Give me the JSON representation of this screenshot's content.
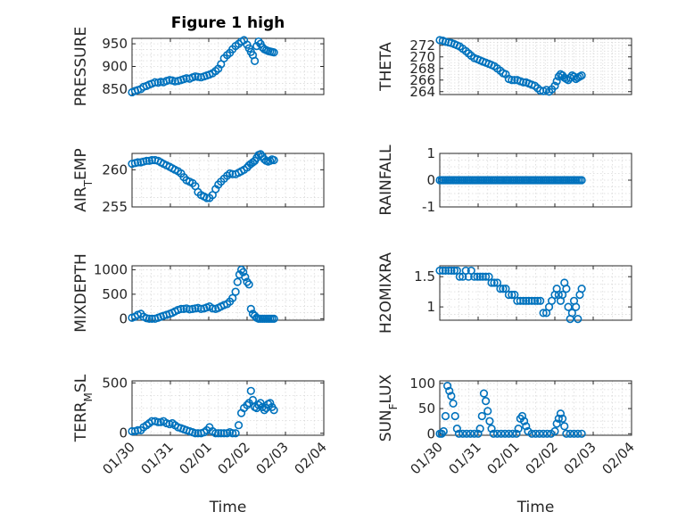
{
  "colors": {
    "marker": "#0072BD",
    "axis": "#262626",
    "grid": "#d9d9d9"
  },
  "x_tick_labels": [
    "01/30",
    "01/31",
    "02/01",
    "02/02",
    "02/03",
    "02/04"
  ],
  "chart_data": [
    {
      "type": "scatter",
      "title": "Figure 1 high",
      "ylabel": "PRESSURE",
      "ylim": [
        838,
        962
      ],
      "yticks": [
        850,
        900,
        950
      ],
      "xlim": [
        0,
        5
      ],
      "grid": true,
      "x": [
        0.0,
        0.08,
        0.15,
        0.23,
        0.3,
        0.38,
        0.45,
        0.52,
        0.6,
        0.68,
        0.75,
        0.82,
        0.9,
        0.98,
        1.05,
        1.12,
        1.2,
        1.28,
        1.35,
        1.42,
        1.5,
        1.58,
        1.65,
        1.72,
        1.8,
        1.88,
        1.95,
        2.02,
        2.1,
        2.18,
        2.25,
        2.32,
        2.4,
        2.48,
        2.55,
        2.62,
        2.7,
        2.78,
        2.85,
        2.92,
        3.0,
        3.05,
        3.1,
        3.15,
        3.2,
        3.25,
        3.3,
        3.35,
        3.4,
        3.45,
        3.5,
        3.55,
        3.6,
        3.65,
        3.7
      ],
      "y": [
        843,
        846,
        848,
        850,
        855,
        857,
        860,
        862,
        865,
        864,
        866,
        865,
        868,
        870,
        869,
        867,
        868,
        870,
        872,
        874,
        873,
        876,
        878,
        877,
        876,
        878,
        880,
        882,
        885,
        890,
        895,
        905,
        918,
        925,
        930,
        938,
        945,
        950,
        955,
        958,
        948,
        940,
        932,
        925,
        912,
        945,
        955,
        950,
        942,
        938,
        936,
        934,
        933,
        932,
        931
      ]
    },
    {
      "type": "scatter",
      "ylabel": "THETA",
      "ylim": [
        263.5,
        273.2
      ],
      "yticks": [
        264,
        266,
        268,
        270,
        272
      ],
      "xlim": [
        0,
        5
      ],
      "grid": true,
      "x": [
        0.0,
        0.08,
        0.15,
        0.23,
        0.3,
        0.38,
        0.45,
        0.52,
        0.6,
        0.68,
        0.75,
        0.82,
        0.9,
        0.98,
        1.05,
        1.12,
        1.2,
        1.28,
        1.35,
        1.42,
        1.5,
        1.58,
        1.65,
        1.72,
        1.8,
        1.88,
        1.95,
        2.02,
        2.1,
        2.18,
        2.25,
        2.32,
        2.4,
        2.48,
        2.55,
        2.62,
        2.7,
        2.78,
        2.85,
        2.92,
        3.0,
        3.05,
        3.1,
        3.15,
        3.2,
        3.25,
        3.3,
        3.35,
        3.4,
        3.45,
        3.5,
        3.55,
        3.6,
        3.65,
        3.7
      ],
      "y": [
        272.9,
        272.8,
        272.6,
        272.5,
        272.4,
        272.2,
        272.0,
        271.8,
        271.4,
        271.0,
        270.6,
        270.2,
        269.8,
        269.6,
        269.4,
        269.2,
        269.0,
        268.8,
        268.6,
        268.4,
        268.0,
        267.6,
        267.2,
        267.0,
        266.2,
        266.0,
        266.0,
        266.0,
        265.8,
        265.6,
        265.6,
        265.4,
        265.2,
        265.0,
        264.6,
        264.2,
        264.1,
        264.3,
        264.0,
        264.4,
        265.0,
        265.8,
        266.6,
        267.0,
        266.8,
        266.4,
        266.2,
        266.0,
        266.4,
        266.8,
        266.6,
        266.2,
        266.4,
        266.6,
        266.8
      ]
    },
    {
      "type": "scatter",
      "ylabel": "AIR_TEMP",
      "ylim": [
        255,
        262.2
      ],
      "yticks": [
        255,
        260
      ],
      "xlim": [
        0,
        5
      ],
      "grid": true,
      "x": [
        0.0,
        0.08,
        0.15,
        0.23,
        0.3,
        0.38,
        0.45,
        0.52,
        0.6,
        0.68,
        0.75,
        0.82,
        0.9,
        0.98,
        1.05,
        1.12,
        1.2,
        1.28,
        1.35,
        1.42,
        1.5,
        1.58,
        1.65,
        1.72,
        1.8,
        1.88,
        1.95,
        2.02,
        2.1,
        2.18,
        2.25,
        2.32,
        2.4,
        2.48,
        2.55,
        2.62,
        2.7,
        2.78,
        2.85,
        2.92,
        3.0,
        3.05,
        3.1,
        3.15,
        3.2,
        3.25,
        3.3,
        3.35,
        3.4,
        3.45,
        3.5,
        3.55,
        3.6,
        3.65,
        3.7
      ],
      "y": [
        260.8,
        260.9,
        261.0,
        261.0,
        261.1,
        261.2,
        261.2,
        261.3,
        261.3,
        261.2,
        261.0,
        260.8,
        260.6,
        260.4,
        260.2,
        260.0,
        259.8,
        259.5,
        259.0,
        258.6,
        258.4,
        258.2,
        257.8,
        257.0,
        256.6,
        256.4,
        256.2,
        256.2,
        256.6,
        257.4,
        258.0,
        258.4,
        258.8,
        259.2,
        259.5,
        259.4,
        259.4,
        259.6,
        259.8,
        260.0,
        260.3,
        260.6,
        260.8,
        261.0,
        261.2,
        261.6,
        262.0,
        262.1,
        261.8,
        261.4,
        261.2,
        261.1,
        261.2,
        261.4,
        261.3
      ]
    },
    {
      "type": "scatter",
      "ylabel": "RAINFALL",
      "ylim": [
        -1,
        1
      ],
      "yticks": [
        -1,
        0,
        1
      ],
      "xlim": [
        0,
        5
      ],
      "grid": true,
      "x_range": [
        0,
        3.7
      ],
      "constant_value": 0
    },
    {
      "type": "scatter",
      "ylabel": "MIXDEPTH",
      "ylim": [
        -30,
        1080
      ],
      "yticks": [
        0,
        500,
        1000
      ],
      "xlim": [
        0,
        5
      ],
      "grid": true,
      "x": [
        0.0,
        0.08,
        0.15,
        0.23,
        0.3,
        0.38,
        0.45,
        0.52,
        0.6,
        0.68,
        0.75,
        0.82,
        0.9,
        0.98,
        1.05,
        1.12,
        1.2,
        1.28,
        1.35,
        1.42,
        1.5,
        1.58,
        1.65,
        1.72,
        1.8,
        1.88,
        1.95,
        2.02,
        2.1,
        2.18,
        2.25,
        2.32,
        2.4,
        2.48,
        2.55,
        2.62,
        2.7,
        2.75,
        2.8,
        2.85,
        2.9,
        2.95,
        3.0,
        3.05,
        3.1,
        3.15,
        3.2,
        3.25,
        3.3,
        3.35,
        3.4,
        3.45,
        3.5,
        3.55,
        3.6,
        3.65,
        3.7
      ],
      "y": [
        20,
        40,
        80,
        100,
        40,
        10,
        0,
        0,
        0,
        20,
        40,
        60,
        80,
        100,
        120,
        150,
        180,
        200,
        200,
        210,
        190,
        200,
        210,
        220,
        200,
        210,
        230,
        250,
        210,
        200,
        220,
        250,
        280,
        300,
        350,
        420,
        550,
        750,
        900,
        1000,
        950,
        850,
        750,
        700,
        200,
        100,
        60,
        20,
        0,
        0,
        0,
        0,
        0,
        0,
        0,
        0,
        0
      ]
    },
    {
      "type": "scatter",
      "ylabel": "H2OMIXRA",
      "ylim": [
        0.78,
        1.68
      ],
      "yticks": [
        1,
        1.5
      ],
      "xlim": [
        0,
        5
      ],
      "grid": true,
      "x": [
        0.0,
        0.08,
        0.15,
        0.23,
        0.3,
        0.38,
        0.45,
        0.52,
        0.6,
        0.68,
        0.75,
        0.82,
        0.9,
        0.98,
        1.05,
        1.12,
        1.2,
        1.28,
        1.35,
        1.42,
        1.5,
        1.58,
        1.65,
        1.72,
        1.8,
        1.88,
        1.95,
        2.02,
        2.1,
        2.18,
        2.25,
        2.32,
        2.4,
        2.48,
        2.55,
        2.62,
        2.7,
        2.78,
        2.85,
        2.92,
        3.0,
        3.05,
        3.1,
        3.15,
        3.2,
        3.25,
        3.3,
        3.35,
        3.4,
        3.45,
        3.5,
        3.55,
        3.6,
        3.65,
        3.7
      ],
      "y": [
        1.6,
        1.6,
        1.6,
        1.6,
        1.6,
        1.6,
        1.6,
        1.5,
        1.5,
        1.6,
        1.5,
        1.6,
        1.5,
        1.5,
        1.5,
        1.5,
        1.5,
        1.5,
        1.4,
        1.4,
        1.4,
        1.3,
        1.3,
        1.3,
        1.2,
        1.2,
        1.2,
        1.1,
        1.1,
        1.1,
        1.1,
        1.1,
        1.1,
        1.1,
        1.1,
        1.1,
        0.9,
        0.9,
        1.0,
        1.1,
        1.2,
        1.3,
        1.2,
        1.1,
        1.2,
        1.4,
        1.3,
        1.0,
        0.8,
        0.9,
        1.1,
        1.0,
        0.8,
        1.2,
        1.3
      ]
    },
    {
      "type": "scatter",
      "ylabel": "TERR_MSL",
      "ylim": [
        -20,
        520
      ],
      "yticks": [
        0,
        500
      ],
      "xlim": [
        0,
        5
      ],
      "grid": true,
      "x": [
        0.0,
        0.08,
        0.15,
        0.23,
        0.3,
        0.38,
        0.45,
        0.52,
        0.6,
        0.68,
        0.75,
        0.82,
        0.9,
        0.98,
        1.05,
        1.12,
        1.2,
        1.28,
        1.35,
        1.42,
        1.5,
        1.58,
        1.65,
        1.72,
        1.8,
        1.88,
        1.95,
        2.02,
        2.1,
        2.18,
        2.25,
        2.32,
        2.4,
        2.48,
        2.55,
        2.62,
        2.7,
        2.78,
        2.85,
        2.92,
        3.0,
        3.05,
        3.1,
        3.15,
        3.2,
        3.25,
        3.3,
        3.35,
        3.4,
        3.45,
        3.5,
        3.55,
        3.6,
        3.65,
        3.7
      ],
      "y": [
        20,
        20,
        30,
        30,
        60,
        80,
        100,
        120,
        120,
        110,
        110,
        120,
        100,
        90,
        100,
        80,
        60,
        50,
        40,
        30,
        20,
        10,
        0,
        0,
        0,
        10,
        30,
        60,
        20,
        0,
        0,
        0,
        0,
        0,
        10,
        0,
        0,
        80,
        200,
        250,
        280,
        300,
        420,
        330,
        260,
        250,
        280,
        300,
        260,
        230,
        250,
        290,
        300,
        260,
        230
      ]
    },
    {
      "type": "scatter",
      "ylabel": "SUN_FLUX",
      "ylim": [
        -3,
        105
      ],
      "yticks": [
        0,
        50,
        100
      ],
      "xlim": [
        0,
        5
      ],
      "grid": true,
      "x": [
        0.0,
        0.05,
        0.1,
        0.15,
        0.2,
        0.25,
        0.3,
        0.35,
        0.4,
        0.45,
        0.5,
        0.6,
        0.7,
        0.8,
        0.9,
        1.0,
        1.05,
        1.1,
        1.15,
        1.2,
        1.25,
        1.3,
        1.35,
        1.4,
        1.5,
        1.6,
        1.7,
        1.8,
        1.9,
        2.0,
        2.05,
        2.1,
        2.15,
        2.2,
        2.25,
        2.3,
        2.4,
        2.5,
        2.6,
        2.7,
        2.8,
        2.9,
        3.0,
        3.05,
        3.1,
        3.15,
        3.2,
        3.25,
        3.3,
        3.4,
        3.5,
        3.6,
        3.7
      ],
      "y": [
        0,
        0,
        5,
        35,
        95,
        85,
        75,
        60,
        35,
        10,
        0,
        0,
        0,
        0,
        0,
        0,
        10,
        35,
        80,
        65,
        45,
        25,
        10,
        0,
        0,
        0,
        0,
        0,
        0,
        0,
        10,
        30,
        35,
        25,
        15,
        5,
        0,
        0,
        0,
        0,
        0,
        0,
        5,
        20,
        30,
        40,
        30,
        15,
        0,
        0,
        0,
        0,
        0
      ]
    }
  ]
}
